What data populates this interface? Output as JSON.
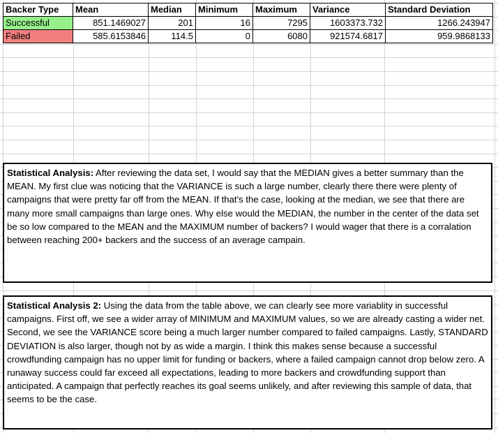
{
  "colors": {
    "successful_fill": "#96f08a",
    "failed_fill": "#f27f7f",
    "grid_line": "#d4d4d4",
    "border": "#000000"
  },
  "table": {
    "headers": [
      "Backer Type",
      "Mean",
      "Median",
      "Minimum",
      "Maximum",
      "Variance",
      "Standard Deviation"
    ],
    "rows": [
      {
        "type": "Successful",
        "mean": "851.1469027",
        "median": "201",
        "minimum": "16",
        "maximum": "7295",
        "variance": "1603373.732",
        "std_dev": "1266.243947"
      },
      {
        "type": "Failed",
        "mean": "585.6153846",
        "median": "114.5",
        "minimum": "0",
        "maximum": "6080",
        "variance": "921574.6817",
        "std_dev": "959.9868133"
      }
    ]
  },
  "analysis_1": {
    "heading": "Statistical Analysis:",
    "body": " After reviewing the data set, I would say that the MEDIAN gives a better summary than the MEAN. My first clue was noticing that the VARIANCE is such a large number, clearly there there were plenty of campaigns that were pretty far off from the MEAN. If that's the case, looking at the median, we see that there are many more small campaigns than large ones. Why else would the MEDIAN, the number in the center of the data set be so low compared to the MEAN and the MAXIMUM number of backers? I would wager that there is a corralation between reaching 200+ backers and the success of an average campain."
  },
  "analysis_2": {
    "heading": "Statistical Analysis 2:",
    "body": " Using the data from the table above, we can clearly see more variablity in successful campaigns. First off, we see a wider array of MINIMUM and MAXIMUM values, so we are already casting a wider net. Second, we see the VARIANCE score being a much larger number compared to failed campaigns. Lastly, STANDARD DEVIATION is also larger, though not by as wide a margin. I think this makes sense because a successful crowdfunding campaign has no upper limit for funding or backers, where a failed campaign cannot drop below zero. A runaway success could far exceed all expectations, leading to more backers and crowdfunding support than anticipated. A campaign that perfectly reaches its goal seems unlikely, and after reviewing this sample of data, that seems to be the case."
  }
}
